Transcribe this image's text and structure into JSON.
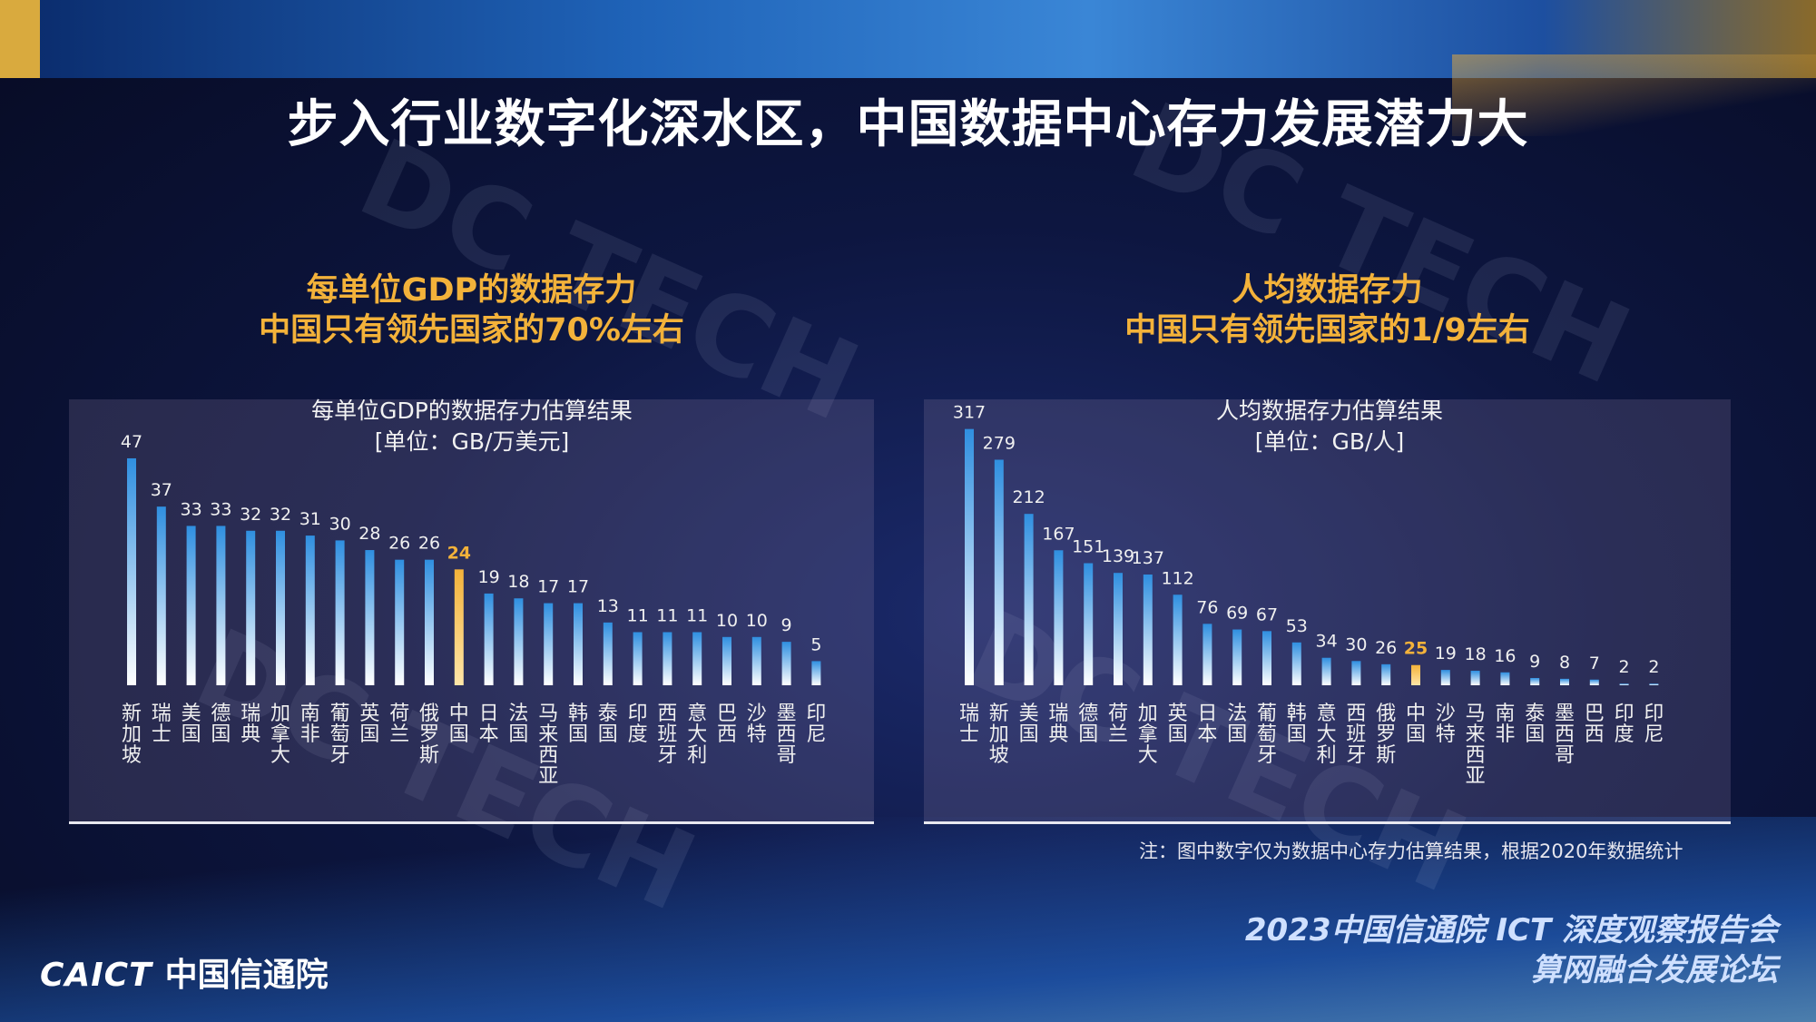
{
  "title": "步入行业数字化深水区，中国数据中心存力发展潜力大",
  "watermark": "DC TECH",
  "left": {
    "subtitle_line1": "每单位GDP的数据存力",
    "subtitle_line2": "中国只有领先国家的70%左右",
    "caption_line1": "每单位GDP的数据存力估算结果",
    "caption_line2": "[单位：GB/万美元]"
  },
  "right": {
    "subtitle_line1": "人均数据存力",
    "subtitle_line2": "中国只有领先国家的1/9左右",
    "caption_line1": "人均数据存力估算结果",
    "caption_line2": "[单位：GB/人]"
  },
  "note": "注：图中数字仅为数据中心存力估算结果，根据2020年数据统计",
  "footer": {
    "event_line1": "2023中国信通院 ICT 深度观察报告会",
    "event_line2": "算网融合发展论坛",
    "logo_en": "CAICT",
    "logo_cn": "中国信通院"
  },
  "colors": {
    "bar_top": "#2f8fe0",
    "bar_bottom": "#ffffff",
    "highlight": "#f3b23a",
    "label": "#f0f0f0"
  },
  "chart_data": [
    {
      "type": "bar",
      "title": "每单位GDP的数据存力估算结果",
      "ylabel": "[单位：GB/万美元]",
      "categories": [
        "新加坡",
        "瑞士",
        "美国",
        "德国",
        "瑞典",
        "加拿大",
        "南非",
        "葡萄牙",
        "英国",
        "荷兰",
        "俄罗斯",
        "中国",
        "日本",
        "法国",
        "马来西亚",
        "韩国",
        "泰国",
        "印度",
        "西班牙",
        "意大利",
        "巴西",
        "沙特",
        "墨西哥",
        "印尼"
      ],
      "values": [
        47,
        37,
        33,
        33,
        32,
        32,
        31,
        30,
        28,
        26,
        26,
        24,
        19,
        18,
        17,
        17,
        13,
        11,
        11,
        11,
        10,
        10,
        9,
        5
      ],
      "highlight": "中国",
      "ylim": [
        0,
        50
      ]
    },
    {
      "type": "bar",
      "title": "人均数据存力估算结果",
      "ylabel": "[单位：GB/人]",
      "categories": [
        "瑞士",
        "新加坡",
        "美国",
        "瑞典",
        "德国",
        "荷兰",
        "加拿大",
        "英国",
        "日本",
        "法国",
        "葡萄牙",
        "韩国",
        "意大利",
        "西班牙",
        "俄罗斯",
        "中国",
        "沙特",
        "马来西亚",
        "南非",
        "泰国",
        "墨西哥",
        "巴西",
        "印度",
        "印尼"
      ],
      "values": [
        317,
        279,
        212,
        167,
        151,
        139,
        137,
        112,
        76,
        69,
        67,
        53,
        34,
        30,
        26,
        25,
        19,
        18,
        16,
        9,
        8,
        7,
        2,
        2
      ],
      "highlight": "中国",
      "ylim": [
        0,
        320
      ]
    }
  ]
}
